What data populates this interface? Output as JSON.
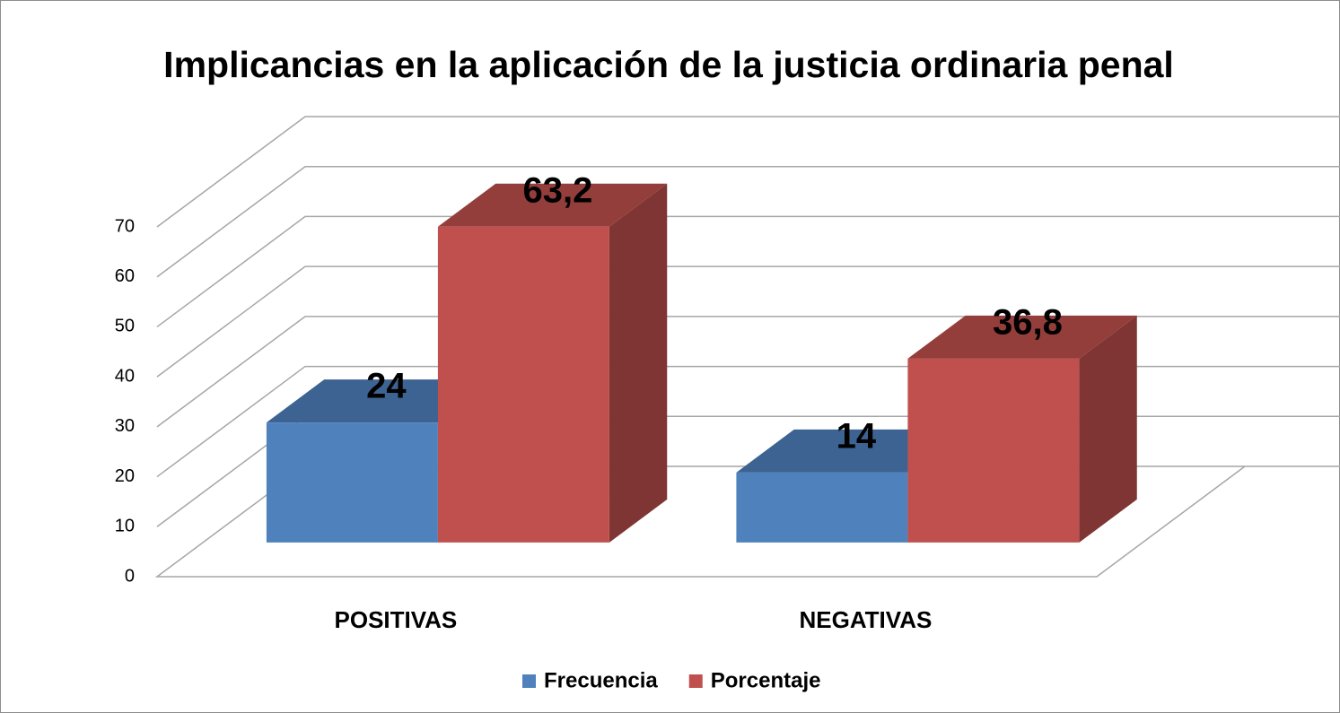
{
  "chart_data": {
    "type": "bar3d",
    "title": "Implicancias en la aplicación de la justicia ordinaria penal",
    "categories": [
      "POSITIVAS",
      "NEGATIVAS"
    ],
    "series": [
      {
        "name": "Frecuencia",
        "color": "#4f81bd",
        "values": [
          24,
          14
        ],
        "value_labels": [
          "24",
          "14"
        ]
      },
      {
        "name": "Porcentaje",
        "color": "#c0504d",
        "values": [
          63.2,
          36.8
        ],
        "value_labels": [
          "63,2",
          "36,8"
        ]
      }
    ],
    "ylim": [
      0,
      70
    ],
    "yticks": [
      0,
      10,
      20,
      30,
      40,
      50,
      60,
      70
    ],
    "grid": true,
    "legend": "bottom"
  }
}
